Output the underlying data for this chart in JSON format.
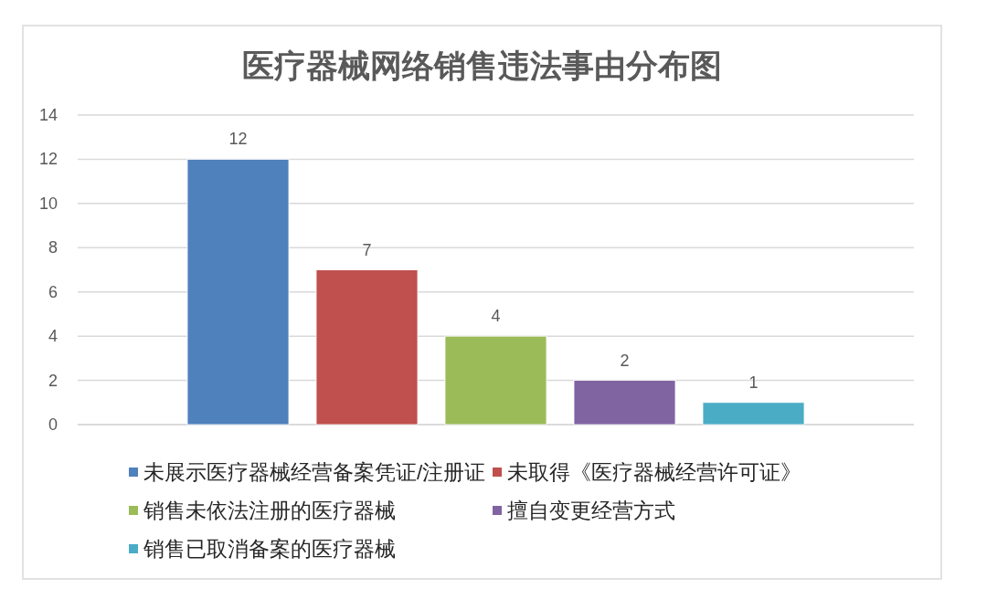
{
  "chart_data": {
    "type": "bar",
    "title": "医疗器械网络销售违法事由分布图",
    "categories": [
      null
    ],
    "series": [
      {
        "name": "未展示医疗器械经营备案凭证/注册证",
        "color": "#4f81bd",
        "values": [
          12
        ]
      },
      {
        "name": "未取得《医疗器械经营许可证》",
        "color": "#c0504d",
        "values": [
          7
        ]
      },
      {
        "name": "销售未依法注册的医疗器械",
        "color": "#9bbb59",
        "values": [
          4
        ]
      },
      {
        "name": "擅自变更经营方式",
        "color": "#8064a2",
        "values": [
          2
        ]
      },
      {
        "name": "销售已取消备案的医疗器械",
        "color": "#4bacc6",
        "values": [
          1
        ]
      }
    ],
    "ylim": [
      0,
      14
    ],
    "yticks": [
      0,
      2,
      4,
      6,
      8,
      10,
      12,
      14
    ],
    "grid": "y",
    "legend": "bottom",
    "data_labels": true
  }
}
